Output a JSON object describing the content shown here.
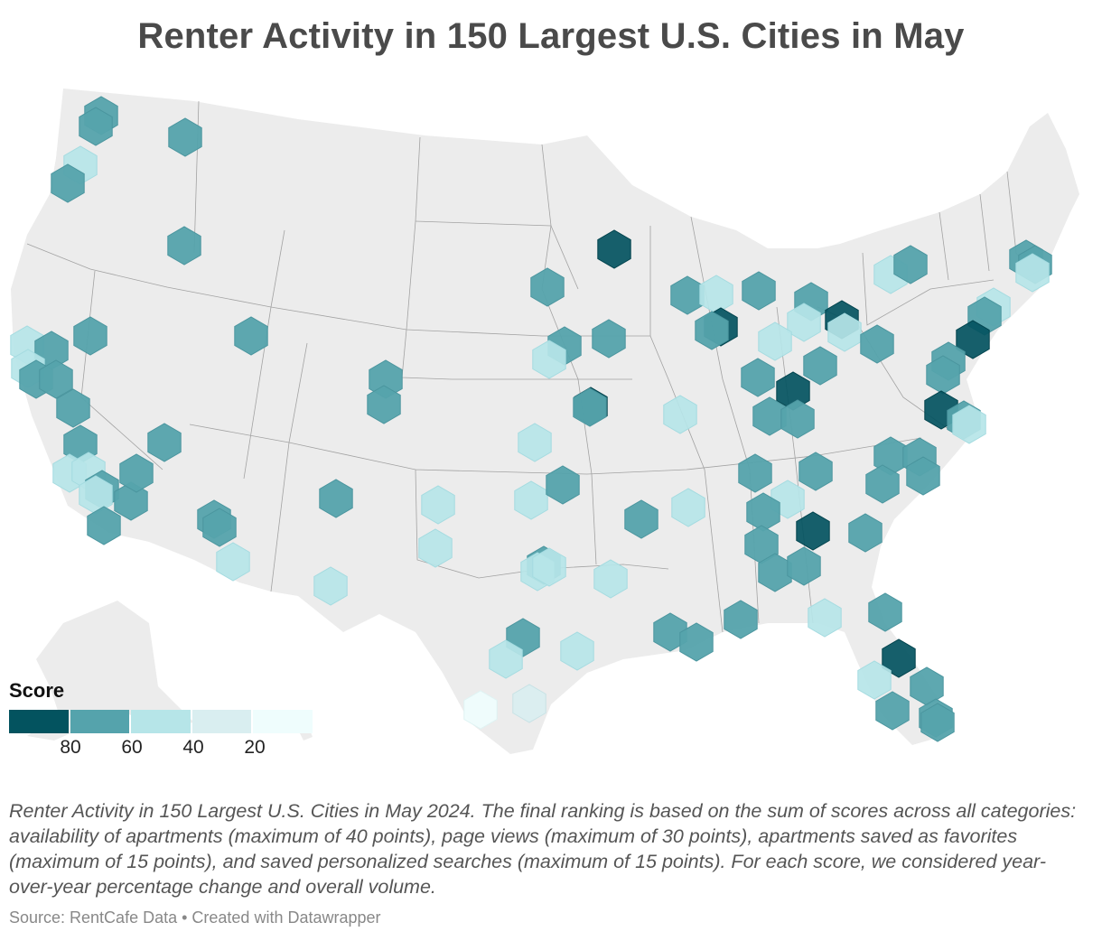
{
  "title": "Renter Activity in 150 Largest U.S. Cities in May",
  "legend": {
    "title": "Score",
    "bins": [
      {
        "color": "#03535f"
      },
      {
        "color": "#55a3ac"
      },
      {
        "color": "#b6e5e8"
      },
      {
        "color": "#d9eef0"
      },
      {
        "color": "#effdfd"
      }
    ],
    "ticks": [
      "80",
      "60",
      "40",
      "20"
    ]
  },
  "colors": {
    "land": "#ececec",
    "borders": "#8a8a8a",
    "hex_stroke_dark": "#02434d",
    "hex_stroke_mid": "#4a959e",
    "hex_stroke_light": "#a4dbe0"
  },
  "notes": "Renter Activity in 150 Largest U.S. Cities in May 2024. The final ranking is based on the sum of scores across all categories: availability of apartments (maximum of 40 points), page views (maximum of 30 points), apartments saved as favorites (maximum of 15 points), and saved personalized searches (maximum of 15 points). For each score, we considered year-over-year percentage change and overall volume.",
  "source": "Source: RentCafe Data • Created with Datawrapper"
}
